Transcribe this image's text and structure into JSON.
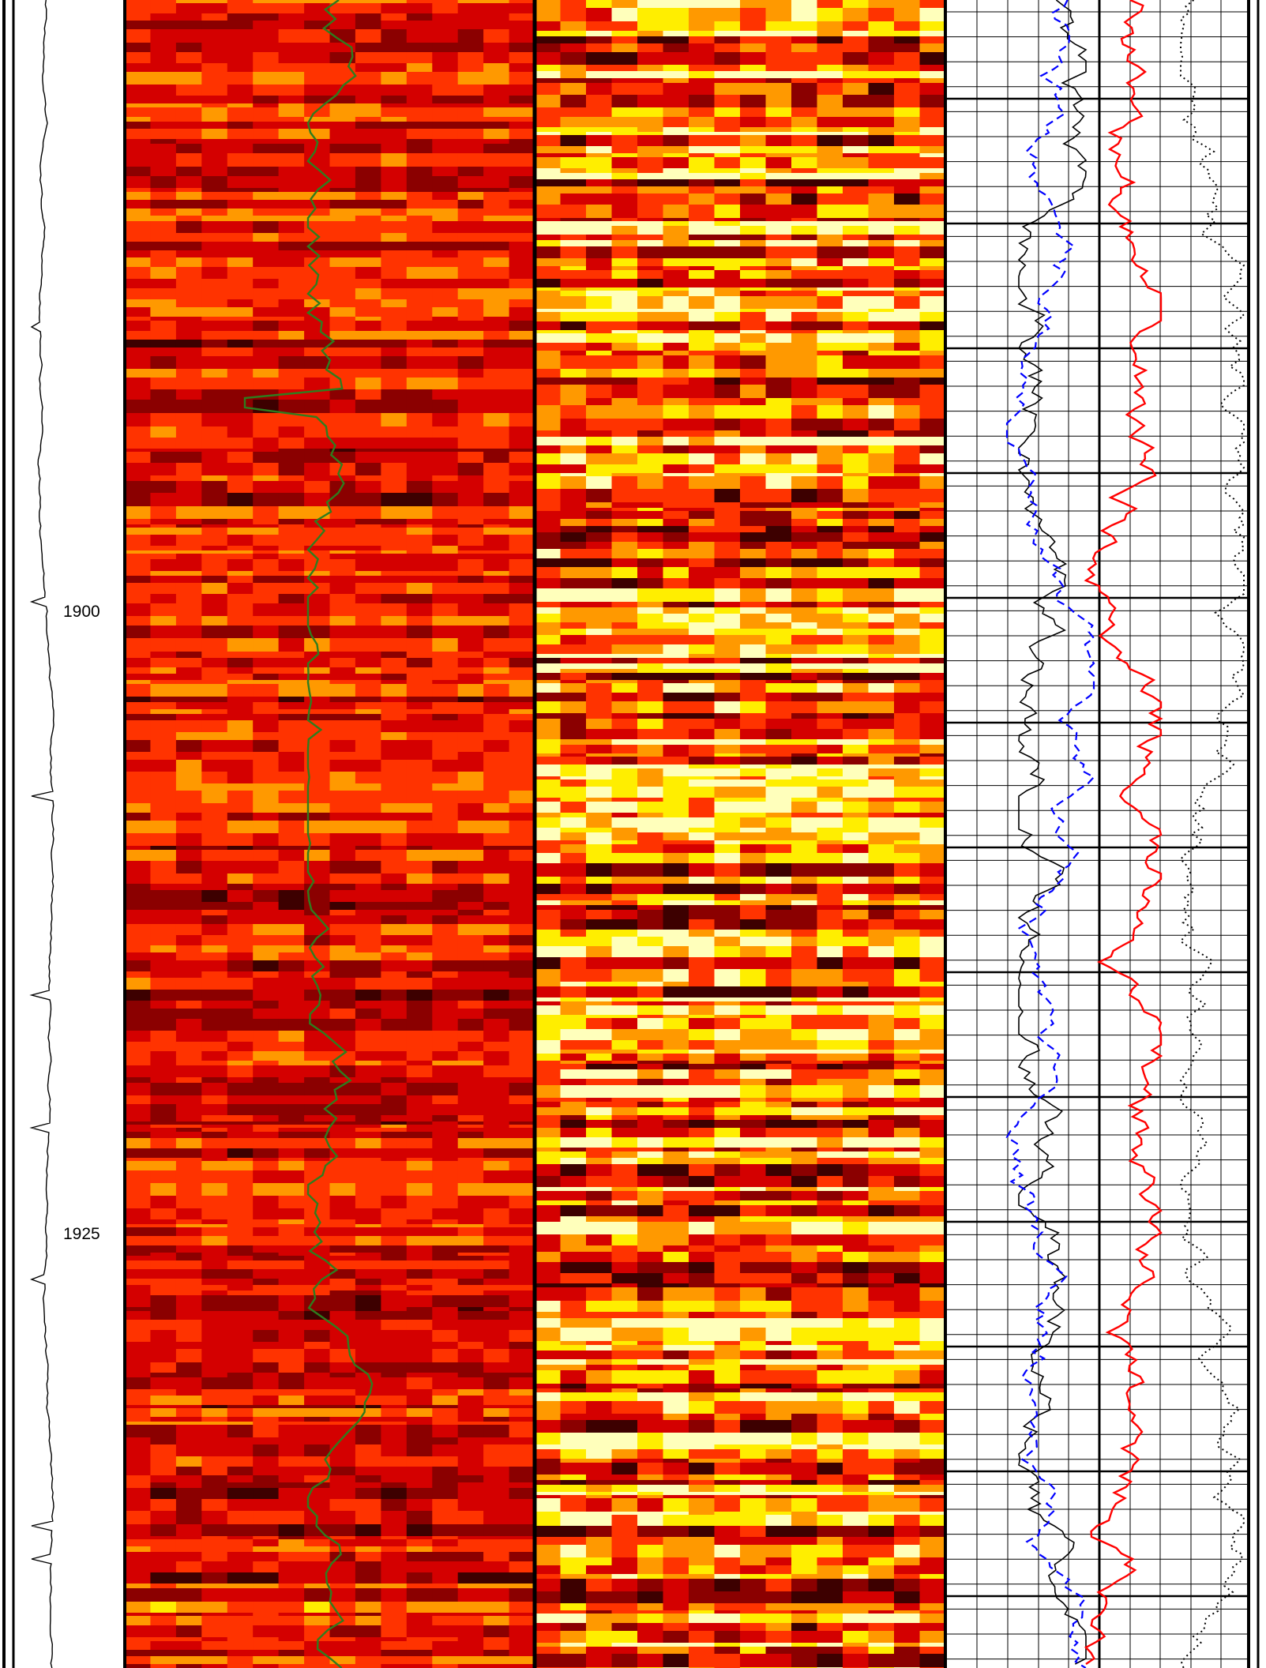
{
  "depth_track": {
    "labels": [
      "1900",
      "1925"
    ]
  },
  "chart_data": {
    "type": "well-log",
    "depth_axis": {
      "range": [
        1875.5,
        1944.5
      ],
      "labeled_ticks": [
        1900,
        1925
      ]
    },
    "tracks": [
      {
        "id": "depth",
        "curves": [
          {
            "color": "#000000",
            "style": "solid"
          }
        ]
      },
      {
        "id": "image-left",
        "type": "heatmap",
        "colormap": [
          "#3d0000",
          "#8b0000",
          "#d40000",
          "#ff3300",
          "#ff9900",
          "#ffee00",
          "#ffffbb"
        ],
        "overlay": {
          "color": "#2e7d1e",
          "style": "solid"
        }
      },
      {
        "id": "image-right",
        "type": "heatmap",
        "colormap": [
          "#3d0000",
          "#8b0000",
          "#d40000",
          "#ff3300",
          "#ff9900",
          "#ffee00",
          "#ffffbb"
        ]
      },
      {
        "id": "curves",
        "grid": true,
        "curves": [
          {
            "color": "#000000",
            "style": "solid"
          },
          {
            "color": "#0000ff",
            "style": "dashed"
          },
          {
            "color": "#ff0000",
            "style": "solid"
          },
          {
            "color": "#000000",
            "style": "dotted"
          }
        ]
      }
    ]
  },
  "colors": {
    "frame": "#000000",
    "green_curve": "#2e7d1e",
    "blue_curve": "#0000ff",
    "red_curve": "#ff0000"
  }
}
